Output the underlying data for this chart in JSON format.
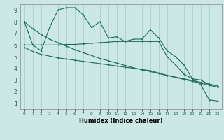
{
  "xlabel": "Humidex (Indice chaleur)",
  "xlim": [
    -0.5,
    23.5
  ],
  "ylim": [
    0.5,
    9.5
  ],
  "xticks": [
    0,
    1,
    2,
    3,
    4,
    5,
    6,
    7,
    8,
    9,
    10,
    11,
    12,
    13,
    14,
    15,
    16,
    17,
    18,
    19,
    20,
    21,
    22,
    23
  ],
  "yticks": [
    1,
    2,
    3,
    4,
    5,
    6,
    7,
    8,
    9
  ],
  "background_color": "#cce8e4",
  "grid_color": "#b0d0cc",
  "line_color": "#1a6b5a",
  "line1_y": [
    8.0,
    6.0,
    5.5,
    7.5,
    9.0,
    9.2,
    9.2,
    8.6,
    7.5,
    8.0,
    6.6,
    6.7,
    6.3,
    6.5,
    6.5,
    7.3,
    6.6,
    5.5,
    5.0,
    4.3,
    3.1,
    2.6,
    1.3,
    1.2
  ],
  "line2_y": [
    6.0,
    6.0,
    6.0,
    6.0,
    6.0,
    6.05,
    6.05,
    6.1,
    6.15,
    6.2,
    6.25,
    6.3,
    6.3,
    6.3,
    6.3,
    6.3,
    6.3,
    5.0,
    4.3,
    3.5,
    3.1,
    3.0,
    2.6,
    2.5
  ],
  "line3_y": [
    5.8,
    5.45,
    5.2,
    5.05,
    4.9,
    4.8,
    4.7,
    4.6,
    4.5,
    4.4,
    4.3,
    4.2,
    4.1,
    4.0,
    3.9,
    3.8,
    3.6,
    3.4,
    3.25,
    3.1,
    2.95,
    2.8,
    2.65,
    2.5
  ],
  "line4_y": [
    8.0,
    7.4,
    6.9,
    6.5,
    6.2,
    5.9,
    5.6,
    5.35,
    5.1,
    4.85,
    4.65,
    4.45,
    4.25,
    4.05,
    3.88,
    3.72,
    3.55,
    3.38,
    3.22,
    3.05,
    2.88,
    2.72,
    2.55,
    2.38
  ]
}
